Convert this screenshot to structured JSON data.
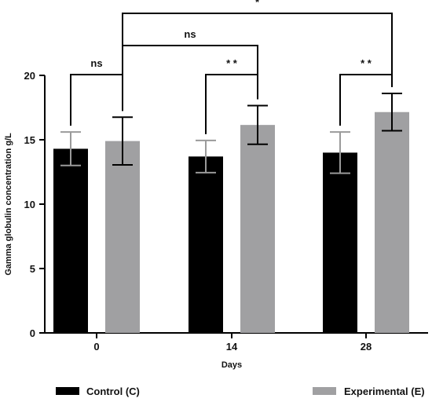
{
  "chart_data": {
    "type": "bar",
    "xlabel": "Days",
    "ylabel": "Gamma globulin concentration g/L",
    "ylim": [
      0,
      20
    ],
    "yticks": [
      0,
      5,
      10,
      15,
      20
    ],
    "categories": [
      "0",
      "14",
      "28"
    ],
    "grid": false,
    "legend_position": "bottom",
    "series": [
      {
        "name": "Control (C)",
        "color": "#000000",
        "values": [
          14.3,
          13.7,
          14.0
        ],
        "errors": [
          1.3,
          1.25,
          1.6
        ]
      },
      {
        "name": "Experimental (E)",
        "color": "#a0a0a2",
        "values": [
          14.9,
          16.15,
          17.15
        ],
        "errors": [
          1.85,
          1.5,
          1.45
        ]
      }
    ],
    "annotations": [
      {
        "label": "ns",
        "from": "0:Control (C)",
        "to": "0:Experimental (E)"
      },
      {
        "label": "* *",
        "from": "14:Control (C)",
        "to": "14:Experimental (E)"
      },
      {
        "label": "* *",
        "from": "28:Control (C)",
        "to": "28:Experimental (E)"
      },
      {
        "label": "ns",
        "from": "0:Experimental (E)",
        "to": "14:Experimental (E)"
      },
      {
        "label": "*",
        "from": "0:Experimental (E)",
        "to": "28:Experimental (E)"
      }
    ]
  }
}
